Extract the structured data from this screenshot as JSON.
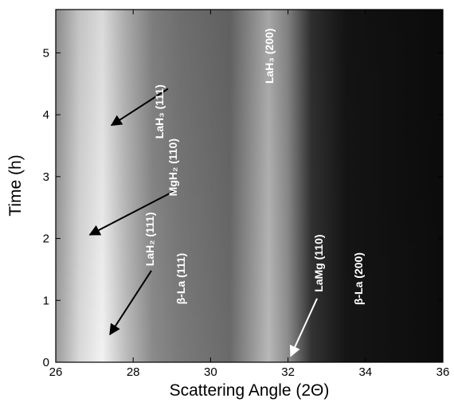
{
  "chart_data": {
    "type": "contour",
    "x_label": "Scattering Angle (2Θ)",
    "y_label": "Time (h)",
    "xlim": [
      26,
      36
    ],
    "ylim": [
      0,
      5.7
    ],
    "xticks": [
      26,
      28,
      30,
      32,
      34,
      36
    ],
    "yticks": [
      0,
      1,
      2,
      3,
      4,
      5
    ],
    "annotations": [
      {
        "text": "LaH₃ (111)",
        "x": 28.78,
        "y": 4.05,
        "arrow_from": [
          28.9,
          4.42
        ],
        "arrow_to": [
          27.44,
          3.83
        ],
        "color": "#000000"
      },
      {
        "text": "MgH₂ (110)",
        "x": 29.13,
        "y": 3.15,
        "arrow_from": [
          29.04,
          2.76
        ],
        "arrow_to": [
          26.88,
          2.06
        ],
        "color": "#000000"
      },
      {
        "text": "LaH₂ (111)",
        "x": 28.53,
        "y": 1.99,
        "arrow_from": [
          28.47,
          1.48
        ],
        "arrow_to": [
          27.4,
          0.45
        ],
        "color": "#000000"
      },
      {
        "text": "β-La (111)",
        "x": 29.33,
        "y": 1.35
      },
      {
        "text": "LaH₃ (200)",
        "x": 31.62,
        "y": 4.95
      },
      {
        "text": "LaMg (110)",
        "x": 32.89,
        "y": 1.6,
        "arrow_from": [
          32.75,
          1.03
        ],
        "arrow_to": [
          32.07,
          0.1
        ],
        "color": "#ffffff"
      },
      {
        "text": "β-La (200)",
        "x": 33.92,
        "y": 1.35
      }
    ]
  }
}
